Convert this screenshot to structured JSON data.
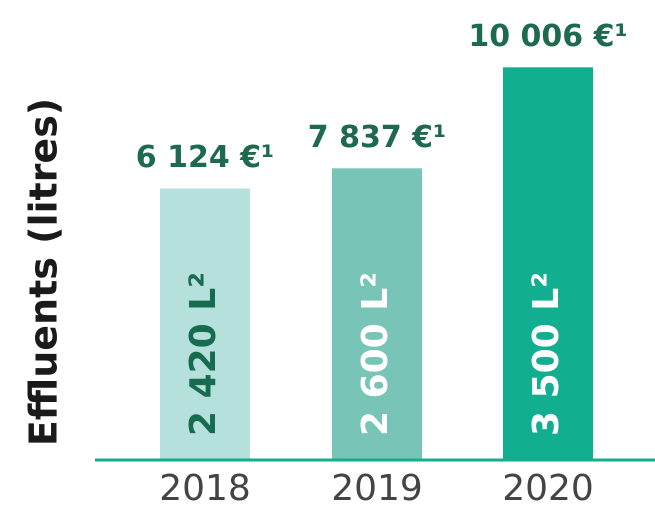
{
  "chart_data": {
    "type": "bar",
    "y_label": "Effluents (litres)",
    "categories": [
      "2018",
      "2019",
      "2020"
    ],
    "values": [
      2420,
      2600,
      3500
    ],
    "value_labels": [
      "2 420 L²",
      "2 600 L²",
      "3 500 L²"
    ],
    "cost_labels": [
      "6 124 €¹",
      "7 837 €¹",
      "10 006 €¹"
    ],
    "colors": [
      "#b6e0dc",
      "#78c5b7",
      "#12ae90"
    ],
    "label_colors": [
      "#176b4f",
      "#ffffff",
      "#ffffff"
    ],
    "ylim": [
      0,
      4100
    ]
  }
}
